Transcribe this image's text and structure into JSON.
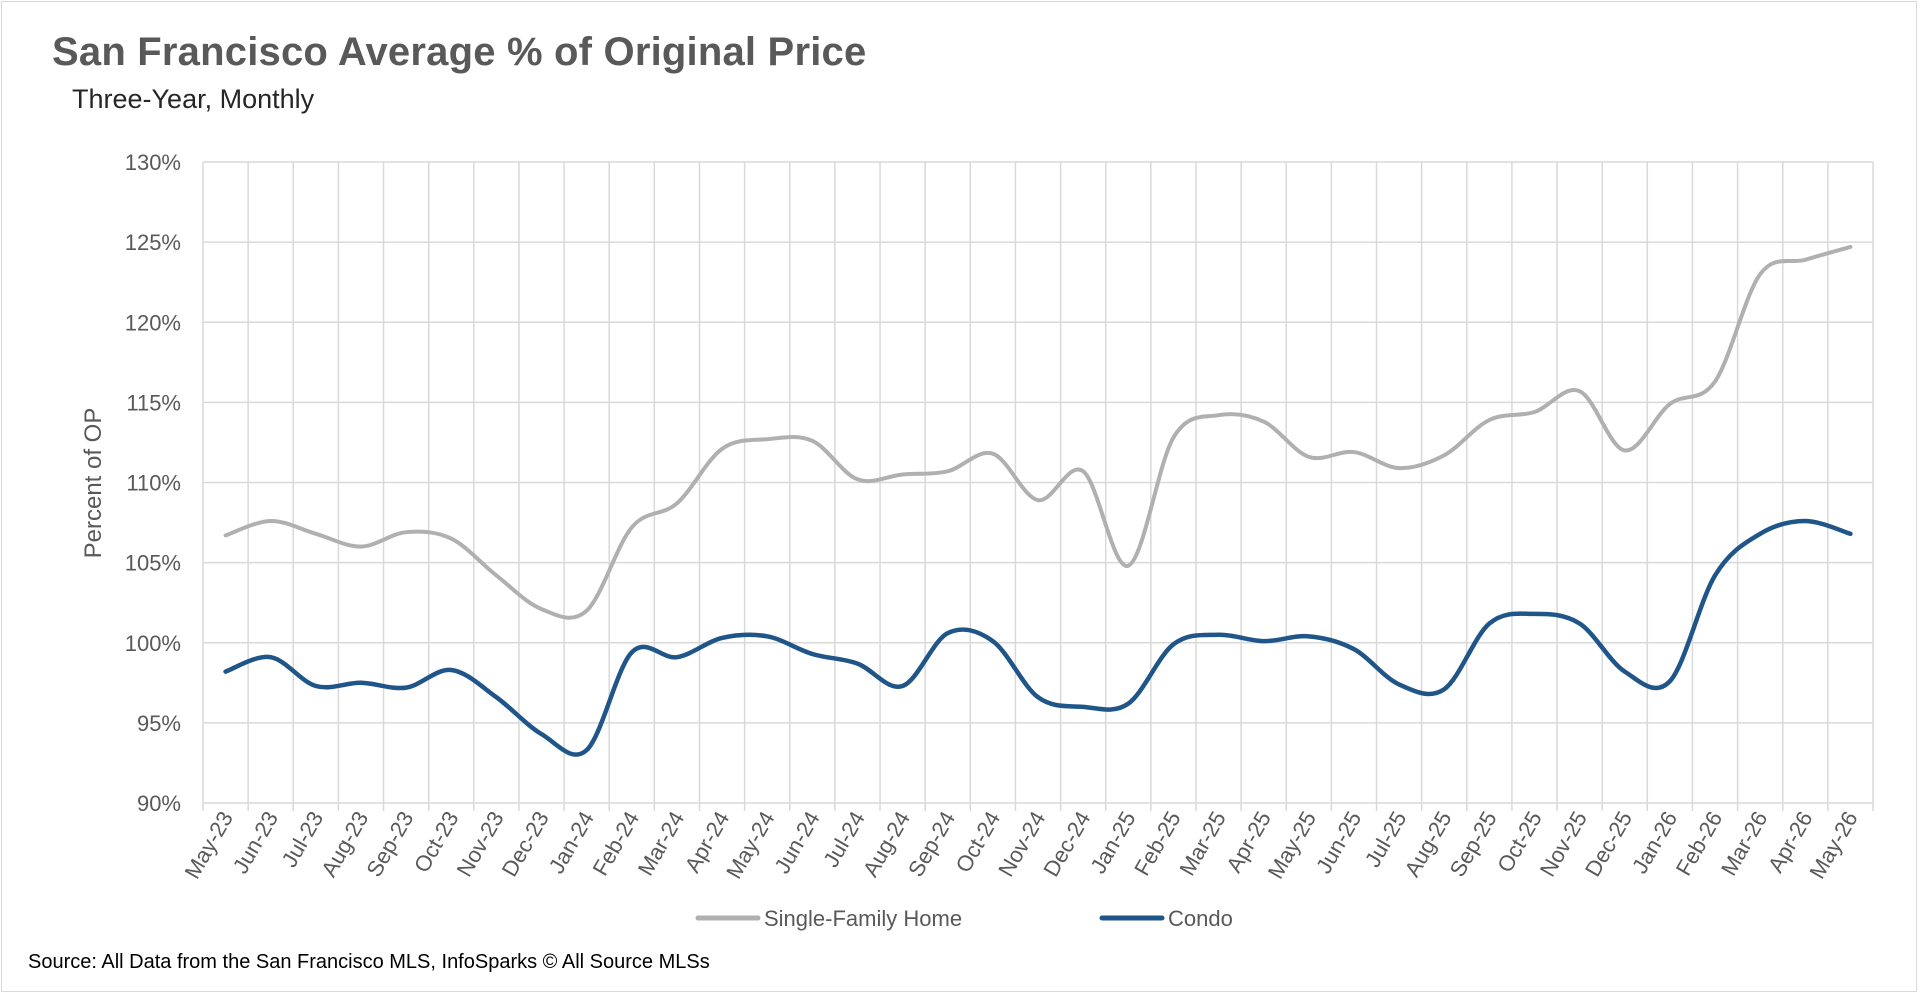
{
  "title": "San Francisco Average % of Original Price",
  "subtitle": "Three-Year, Monthly",
  "source": "Source: All Data from the San Francisco MLS, InfoSparks © All Source MLSs",
  "chart_data": {
    "type": "line",
    "ylabel": "Percent of OP",
    "xlabel": "",
    "ylim": [
      90,
      130
    ],
    "ytick_step": 5,
    "y_tick_format": "percent",
    "grid": true,
    "legend_position": "bottom",
    "categories": [
      "May-23",
      "Jun-23",
      "Jul-23",
      "Aug-23",
      "Sep-23",
      "Oct-23",
      "Nov-23",
      "Dec-23",
      "Jan-24",
      "Feb-24",
      "Mar-24",
      "Apr-24",
      "May-24",
      "Jun-24",
      "Jul-24",
      "Aug-24",
      "Sep-24",
      "Oct-24",
      "Nov-24",
      "Dec-24",
      "Jan-25",
      "Feb-25",
      "Mar-25",
      "Apr-25",
      "May-25",
      "Jun-25",
      "Jul-25",
      "Aug-25",
      "Sep-25",
      "Oct-25",
      "Nov-25",
      "Dec-25",
      "Jan-26",
      "Feb-26",
      "Mar-26",
      "Apr-26",
      "May-26"
    ],
    "series": [
      {
        "name": "Single-Family Home",
        "color": "#b0b0b0",
        "values": [
          106.7,
          107.6,
          106.8,
          106.0,
          106.9,
          106.5,
          104.2,
          102.1,
          102.0,
          107.2,
          108.7,
          112.1,
          112.7,
          112.6,
          110.2,
          110.5,
          110.7,
          111.8,
          108.9,
          110.7,
          104.8,
          112.8,
          114.2,
          113.8,
          111.6,
          111.9,
          110.9,
          111.7,
          113.9,
          114.4,
          115.7,
          112.0,
          114.9,
          116.3,
          123.0,
          123.9,
          124.7
        ]
      },
      {
        "name": "Condo",
        "color": "#1f5588",
        "values": [
          98.2,
          99.1,
          97.3,
          97.5,
          97.2,
          98.3,
          96.6,
          94.3,
          93.3,
          99.4,
          99.1,
          100.3,
          100.4,
          99.3,
          98.7,
          97.3,
          100.6,
          100.1,
          96.6,
          96.0,
          96.2,
          99.9,
          100.5,
          100.1,
          100.4,
          99.6,
          97.4,
          97.1,
          101.2,
          101.8,
          101.2,
          98.2,
          97.6,
          104.2,
          106.8,
          107.6,
          106.8
        ]
      }
    ]
  }
}
